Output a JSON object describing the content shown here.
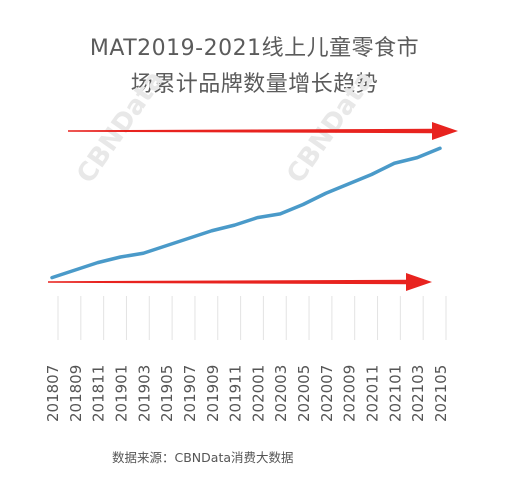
{
  "chart_data": {
    "type": "line",
    "title_line1": "MAT2019-2021线上儿童零食市",
    "title_line2": "场累计品牌数量增长趋势",
    "source": "数据来源：CBNData消费大数据",
    "watermark": "CBNData",
    "x_ticks": [
      "201807",
      "201809",
      "201811",
      "201901",
      "201903",
      "201905",
      "201907",
      "201909",
      "201911",
      "202001",
      "202003",
      "202005",
      "202007",
      "202009",
      "202011",
      "202101",
      "202103",
      "202105"
    ],
    "series": [
      {
        "color": "#4a9ac9",
        "values": [
          5,
          9,
          13,
          16,
          18,
          22,
          26,
          30,
          33,
          37,
          39,
          44,
          50,
          55,
          60,
          66,
          69,
          74
        ]
      }
    ],
    "ylim": [
      0,
      80
    ],
    "annotations": [
      {
        "type": "arrow",
        "color": "#e8231f",
        "level": "top"
      },
      {
        "type": "arrow",
        "color": "#e8231f",
        "level": "bottom"
      }
    ]
  }
}
